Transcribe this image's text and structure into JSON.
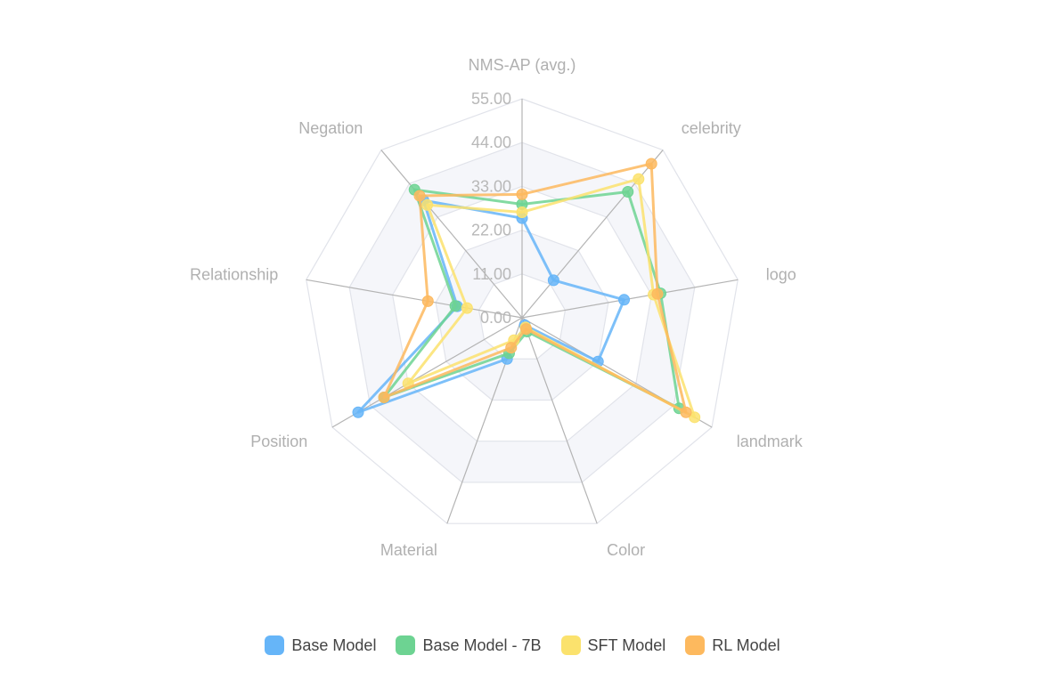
{
  "chart_data": {
    "type": "radar",
    "axes": [
      "NMS-AP (avg.)",
      "celebrity",
      "logo",
      "landmark",
      "Color",
      "Material",
      "Position",
      "Relationship",
      "Negation"
    ],
    "ticks": [
      "0.00",
      "11.00",
      "22.00",
      "33.00",
      "44.00",
      "55.00"
    ],
    "range": [
      0,
      55
    ],
    "series": [
      {
        "name": "Base Model",
        "color": "#66b5f8",
        "values": [
          25.0,
          12.3,
          26.0,
          22.0,
          2.0,
          11.0,
          47.5,
          16.5,
          38.5
        ]
      },
      {
        "name": "Base Model - 7B",
        "color": "#6dd392",
        "values": [
          28.5,
          41.3,
          35.3,
          45.5,
          3.7,
          9.5,
          40.0,
          17.0,
          42.0
        ]
      },
      {
        "name": "SFT Model",
        "color": "#fbe26d",
        "values": [
          26.5,
          45.5,
          33.5,
          50.0,
          2.6,
          6.0,
          33.0,
          14.0,
          37.0
        ]
      },
      {
        "name": "RL Model",
        "color": "#fdb95e",
        "values": [
          31.0,
          50.5,
          34.5,
          47.5,
          3.0,
          8.0,
          40.0,
          24.0,
          40.0
        ]
      }
    ],
    "legend_position": "bottom"
  }
}
